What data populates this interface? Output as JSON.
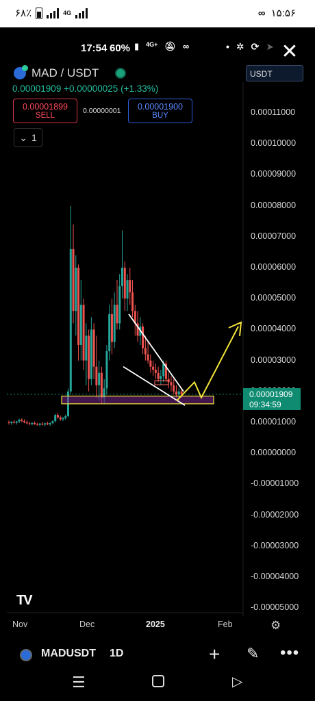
{
  "phone_status": {
    "battery_percent": "۶۸٪",
    "network": "4G",
    "time": "۱۵:۵۶"
  },
  "inner_status": {
    "time": "17:54",
    "battery": "60%",
    "network": "4G+"
  },
  "symbol": {
    "name": "MAD / USDT",
    "last": "0.00001909",
    "change": "+0.00000025",
    "change_pct": "(+1.33%)"
  },
  "trade": {
    "sell_price": "0.00001899",
    "sell_label": "SELL",
    "spread": "0.00000001",
    "buy_price": "0.00001900",
    "buy_label": "BUY"
  },
  "interval_button": "1",
  "currency_select": "USDT",
  "current_price": {
    "value": "0.00001909",
    "countdown": "09:34:59"
  },
  "colors": {
    "up": "#26a69a",
    "down": "#ef5350",
    "accent": "#0f8b72",
    "annotation_yellow": "#f5e63a"
  },
  "chart_data": {
    "type": "candlestick",
    "title": "",
    "y_axis": {
      "ticks": [
        "0.00011000",
        "0.00010000",
        "0.00009000",
        "0.00008000",
        "0.00007000",
        "0.00006000",
        "0.00005000",
        "0.00004000",
        "0.00003000",
        "0.00002000",
        "0.00001000",
        "0.00000000",
        "-0.00001000",
        "-0.00002000",
        "-0.00003000",
        "-0.00004000",
        "-0.00005000"
      ],
      "range": [
        -5.3e-05,
        0.000118
      ]
    },
    "x_axis": {
      "ticks": [
        "Nov",
        "Dec",
        "2025",
        "Feb"
      ]
    },
    "series": [
      {
        "type": "candlestick",
        "description_free": true,
        "ohlc": [
          [
            1e-05,
            1.06e-05,
            9.3e-06,
            9.8e-06
          ],
          [
            9.8e-06,
            1.04e-05,
            9.2e-06,
            1.02e-05
          ],
          [
            1.02e-05,
            1.08e-05,
            9.6e-06,
            9.9e-06
          ],
          [
            9.9e-06,
            1.05e-05,
            9.3e-06,
            1.03e-05
          ],
          [
            1.03e-05,
            1.12e-05,
            9.8e-06,
            1.08e-05
          ],
          [
            1.08e-05,
            1.13e-05,
            1.01e-05,
            1.04e-05
          ],
          [
            1.04e-05,
            1.1e-05,
            9.7e-06,
            1e-05
          ],
          [
            1e-05,
            1.06e-05,
            9.4e-06,
            9.7e-06
          ],
          [
            9.7e-06,
            1.02e-05,
            9.1e-06,
            9.5e-06
          ],
          [
            9.5e-06,
            1.01e-05,
            9e-06,
            9.8e-06
          ],
          [
            9.8e-06,
            1.03e-05,
            9.2e-06,
            9.4e-06
          ],
          [
            9.4e-06,
            9.9e-06,
            8.9e-06,
            9.2e-06
          ],
          [
            9.2e-06,
            9.8e-06,
            8.7e-06,
            9.6e-06
          ],
          [
            9.6e-06,
            1.01e-05,
            9e-06,
            9.3e-06
          ],
          [
            9.3e-06,
            9.9e-06,
            8.8e-06,
            9.7e-06
          ],
          [
            9.7e-06,
            1.02e-05,
            9.1e-06,
            9.4e-06
          ],
          [
            9.4e-06,
            1e-05,
            8.9e-06,
            9.8e-06
          ],
          [
            9.8e-06,
            1.06e-05,
            9.4e-06,
            1.04e-05
          ],
          [
            1.04e-05,
            1.28e-05,
            1e-05,
            1.24e-05
          ],
          [
            1.24e-05,
            1.3e-05,
            1.12e-05,
            1.16e-05
          ],
          [
            1.16e-05,
            1.22e-05,
            1.05e-05,
            1.1e-05
          ],
          [
            1.1e-05,
            1.18e-05,
            1.04e-05,
            1.14e-05
          ],
          [
            1.14e-05,
            1.25e-05,
            1.08e-05,
            1.2e-05
          ],
          [
            1.2e-05,
            2.1e-05,
            1.16e-05,
            2e-05
          ],
          [
            2e-05,
            8e-05,
            1.9e-05,
            6.6e-05
          ],
          [
            6.6e-05,
            7.4e-05,
            4.2e-05,
            4.6e-05
          ],
          [
            4.6e-05,
            6.4e-05,
            3.8e-05,
            6e-05
          ],
          [
            6e-05,
            6.1e-05,
            3e-05,
            3.5e-05
          ],
          [
            3.5e-05,
            5.6e-05,
            3e-05,
            4.8e-05
          ],
          [
            4.8e-05,
            5e-05,
            2.7e-05,
            3e-05
          ],
          [
            3e-05,
            4.2e-05,
            2.2e-05,
            3.8e-05
          ],
          [
            3.8e-05,
            4e-05,
            2e-05,
            2.4e-05
          ],
          [
            2.4e-05,
            4.4e-05,
            2.2e-05,
            4e-05
          ],
          [
            4e-05,
            4.2e-05,
            2.4e-05,
            2.8e-05
          ],
          [
            2.8e-05,
            3.8e-05,
            1.8e-05,
            2.2e-05
          ],
          [
            2.2e-05,
            3e-05,
            1.7e-05,
            2.6e-05
          ],
          [
            2.6e-05,
            2.8e-05,
            1.6e-05,
            1.8e-05
          ],
          [
            1.8e-05,
            2.4e-05,
            1.6e-05,
            2.1e-05
          ],
          [
            2.1e-05,
            3.5e-05,
            1.9e-05,
            3.3e-05
          ],
          [
            3.3e-05,
            4.8e-05,
            3e-05,
            4.5e-05
          ],
          [
            4.5e-05,
            5e-05,
            3.2e-05,
            3.6e-05
          ],
          [
            3.6e-05,
            5.2e-05,
            3.4e-05,
            4.8e-05
          ],
          [
            4.8e-05,
            5.6e-05,
            4e-05,
            4.2e-05
          ],
          [
            4.2e-05,
            5.8e-05,
            4e-05,
            5.4e-05
          ],
          [
            5.4e-05,
            7.2e-05,
            5e-05,
            6e-05
          ],
          [
            6e-05,
            6.2e-05,
            4.6e-05,
            5e-05
          ],
          [
            5e-05,
            5.8e-05,
            4.6e-05,
            5.6e-05
          ],
          [
            5.6e-05,
            6e-05,
            4.8e-05,
            5.2e-05
          ],
          [
            5.2e-05,
            5.6e-05,
            4.4e-05,
            4.6e-05
          ],
          [
            4.6e-05,
            4.8e-05,
            3.8e-05,
            4.2e-05
          ],
          [
            4.2e-05,
            4.6e-05,
            3.6e-05,
            3.8e-05
          ],
          [
            3.8e-05,
            4.4e-05,
            3.5e-05,
            4.1e-05
          ],
          [
            4.1e-05,
            4.2e-05,
            3.2e-05,
            3.4e-05
          ],
          [
            3.4e-05,
            3.8e-05,
            3e-05,
            3.2e-05
          ],
          [
            3.2e-05,
            3.6e-05,
            2.9e-05,
            3e-05
          ],
          [
            3e-05,
            3.2e-05,
            2.6e-05,
            2.8e-05
          ],
          [
            2.8e-05,
            3e-05,
            2.5e-05,
            2.7e-05
          ],
          [
            2.7e-05,
            2.9e-05,
            2.4e-05,
            2.6e-05
          ],
          [
            2.6e-05,
            2.8e-05,
            2.3e-05,
            2.4e-05
          ],
          [
            2.4e-05,
            2.7e-05,
            2.2e-05,
            2.5e-05
          ],
          [
            2.5e-05,
            3e-05,
            2.3e-05,
            2.9e-05
          ],
          [
            2.9e-05,
            3e-05,
            2.3e-05,
            2.4e-05
          ],
          [
            2.4e-05,
            2.6e-05,
            2.1e-05,
            2.3e-05
          ],
          [
            2.3e-05,
            2.5e-05,
            2e-05,
            2.2e-05
          ],
          [
            2.2e-05,
            2.4e-05,
            1.9e-05,
            2e-05
          ],
          [
            2e-05,
            2.2e-05,
            1.8e-05,
            1.9e-05
          ],
          [
            1.9e-05,
            2.1e-05,
            1.8e-05,
            2e-05
          ],
          [
            2e-05,
            2.05e-05,
            1.8e-05,
            1.91e-05
          ]
        ]
      }
    ],
    "annotations": [
      {
        "type": "support_zone",
        "price_low": 1.6e-05,
        "price_high": 1.85e-05
      },
      {
        "type": "wedge_upper",
        "from_price": 4.5e-05,
        "to_price": 2e-05
      },
      {
        "type": "wedge_lower",
        "from_price": 2.8e-05,
        "to_price": 1.55e-05
      },
      {
        "type": "projection_arrow",
        "target_price": 4.2e-05
      }
    ],
    "grid": false
  },
  "x_labels": [
    "Nov",
    "Dec",
    "2025",
    "Feb"
  ],
  "bottom_toolbar": {
    "symbol": "MADUSDT",
    "interval": "1D"
  }
}
